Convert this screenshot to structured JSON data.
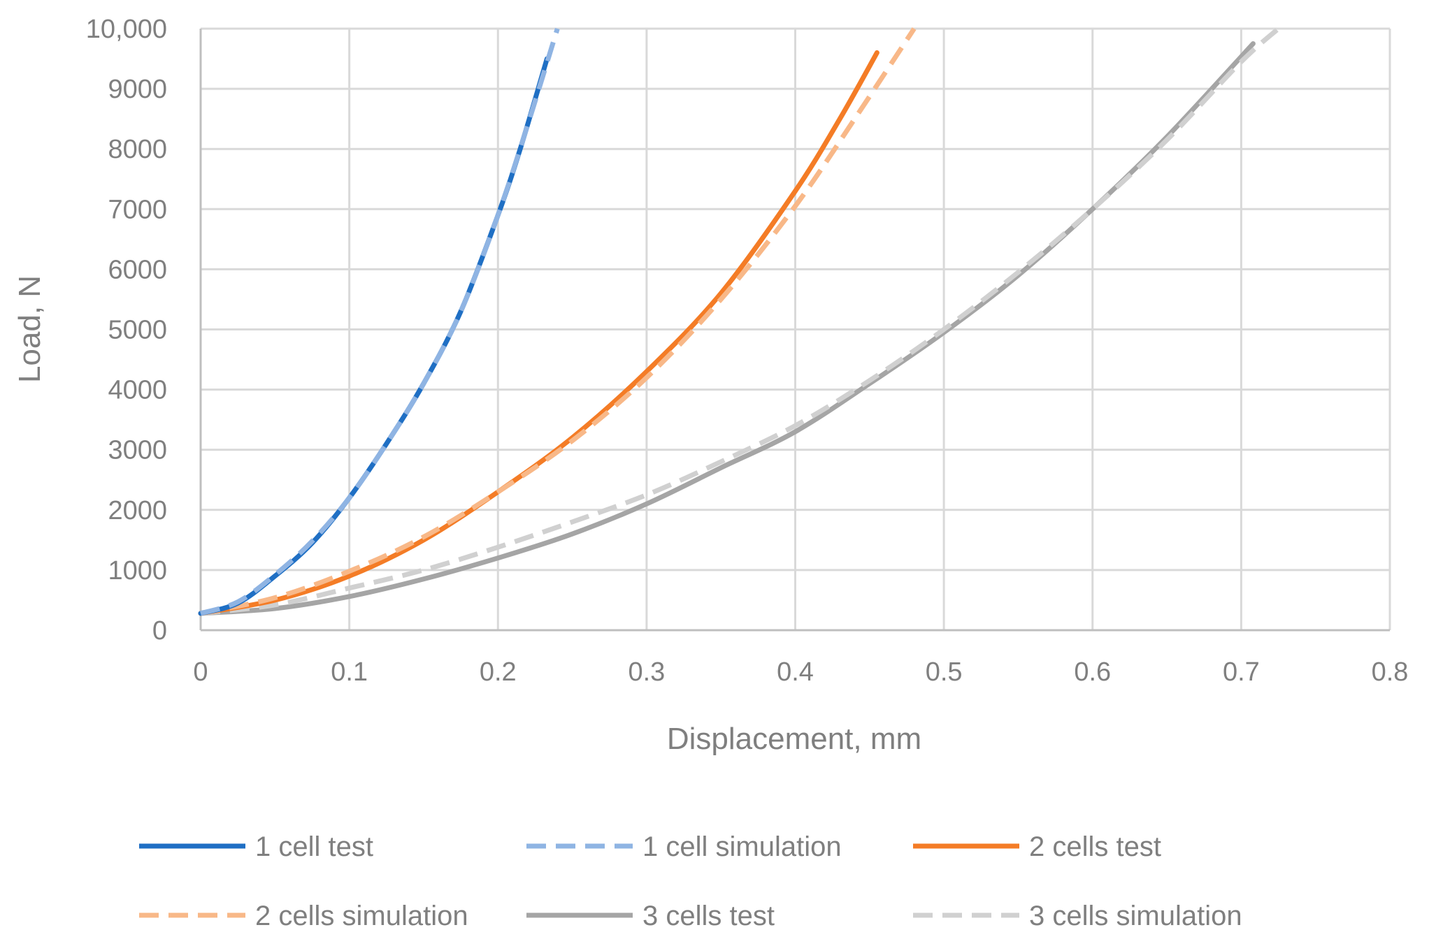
{
  "chart_data": {
    "type": "line",
    "title": "",
    "xlabel": "Displacement, mm",
    "ylabel": "Load, N",
    "xlim": [
      0,
      0.8
    ],
    "ylim": [
      0,
      10000
    ],
    "xticks": [
      0,
      0.1,
      0.2,
      0.3,
      0.4,
      0.5,
      0.6,
      0.7,
      0.8
    ],
    "xtick_labels": [
      "0",
      "0.1",
      "0.2",
      "0.3",
      "0.4",
      "0.5",
      "0.6",
      "0.7",
      "0.8"
    ],
    "yticks": [
      0,
      1000,
      2000,
      3000,
      4000,
      5000,
      6000,
      7000,
      8000,
      9000,
      10000
    ],
    "ytick_labels": [
      "0",
      "1000",
      "2000",
      "3000",
      "4000",
      "5000",
      "6000",
      "7000",
      "8000",
      "9000",
      "10,000"
    ],
    "grid": true,
    "legend_position": "bottom",
    "series": [
      {
        "name": "1 cell test",
        "color": "#1f6fc4",
        "dash": "solid",
        "points": [
          [
            0,
            280
          ],
          [
            0.025,
            450
          ],
          [
            0.05,
            900
          ],
          [
            0.075,
            1450
          ],
          [
            0.1,
            2200
          ],
          [
            0.125,
            3100
          ],
          [
            0.15,
            4100
          ],
          [
            0.175,
            5300
          ],
          [
            0.2,
            6900
          ],
          [
            0.215,
            8000
          ],
          [
            0.233,
            9500
          ]
        ]
      },
      {
        "name": "1 cell simulation",
        "color": "#8fb4e3",
        "dash": "dashed",
        "points": [
          [
            0,
            280
          ],
          [
            0.025,
            470
          ],
          [
            0.05,
            920
          ],
          [
            0.075,
            1480
          ],
          [
            0.1,
            2200
          ],
          [
            0.125,
            3100
          ],
          [
            0.15,
            4100
          ],
          [
            0.175,
            5300
          ],
          [
            0.2,
            6900
          ],
          [
            0.22,
            8400
          ],
          [
            0.24,
            10000
          ]
        ]
      },
      {
        "name": "2 cells test",
        "color": "#f47c26",
        "dash": "solid",
        "points": [
          [
            0,
            280
          ],
          [
            0.05,
            500
          ],
          [
            0.1,
            900
          ],
          [
            0.15,
            1500
          ],
          [
            0.2,
            2300
          ],
          [
            0.25,
            3200
          ],
          [
            0.3,
            4300
          ],
          [
            0.35,
            5600
          ],
          [
            0.4,
            7300
          ],
          [
            0.43,
            8500
          ],
          [
            0.455,
            9600
          ]
        ]
      },
      {
        "name": "2 cells simulation",
        "color": "#f8b888",
        "dash": "dashed",
        "points": [
          [
            0,
            280
          ],
          [
            0.05,
            540
          ],
          [
            0.1,
            980
          ],
          [
            0.15,
            1550
          ],
          [
            0.2,
            2300
          ],
          [
            0.25,
            3150
          ],
          [
            0.3,
            4200
          ],
          [
            0.35,
            5500
          ],
          [
            0.4,
            7050
          ],
          [
            0.44,
            8500
          ],
          [
            0.48,
            10000
          ]
        ]
      },
      {
        "name": "3 cells test",
        "color": "#a5a5a5",
        "dash": "solid",
        "points": [
          [
            0,
            280
          ],
          [
            0.05,
            360
          ],
          [
            0.1,
            560
          ],
          [
            0.15,
            850
          ],
          [
            0.2,
            1200
          ],
          [
            0.25,
            1600
          ],
          [
            0.3,
            2100
          ],
          [
            0.35,
            2700
          ],
          [
            0.4,
            3300
          ],
          [
            0.45,
            4100
          ],
          [
            0.5,
            4950
          ],
          [
            0.55,
            5900
          ],
          [
            0.6,
            7000
          ],
          [
            0.65,
            8200
          ],
          [
            0.708,
            9750
          ]
        ]
      },
      {
        "name": "3 cells simulation",
        "color": "#d0d0d0",
        "dash": "dashed",
        "points": [
          [
            0,
            280
          ],
          [
            0.05,
            420
          ],
          [
            0.1,
            700
          ],
          [
            0.15,
            1000
          ],
          [
            0.2,
            1380
          ],
          [
            0.25,
            1800
          ],
          [
            0.3,
            2250
          ],
          [
            0.35,
            2800
          ],
          [
            0.4,
            3400
          ],
          [
            0.45,
            4150
          ],
          [
            0.5,
            5000
          ],
          [
            0.55,
            5950
          ],
          [
            0.6,
            7000
          ],
          [
            0.65,
            8150
          ],
          [
            0.7,
            9450
          ],
          [
            0.725,
            10000
          ]
        ]
      }
    ]
  }
}
